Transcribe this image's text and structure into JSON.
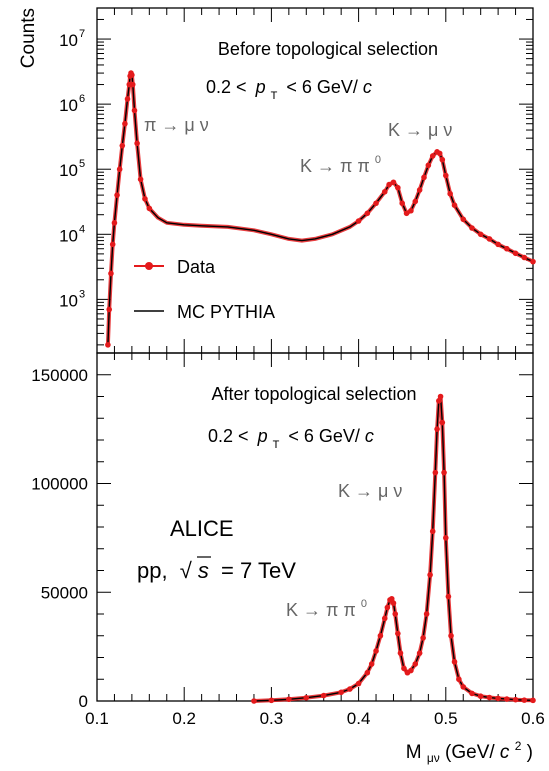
{
  "chart_data": [
    {
      "panel": "top",
      "type": "scatter",
      "scale": "log",
      "ylabel": "Counts",
      "ylim": [
        150,
        30000000
      ],
      "xlim": [
        0.1,
        0.6
      ],
      "yticks": [
        {
          "value": 1000,
          "base": "10",
          "exp": "3"
        },
        {
          "value": 10000,
          "base": "10",
          "exp": "4"
        },
        {
          "value": 100000,
          "base": "10",
          "exp": "5"
        },
        {
          "value": 1000000,
          "base": "10",
          "exp": "6"
        },
        {
          "value": 10000000,
          "base": "10",
          "exp": "7"
        }
      ],
      "texts": {
        "selection": "Before topological selection",
        "pt_lo": "0.2 <",
        "pt_var": "p",
        "pt_sub": "T",
        "pt_hi": "< 6 GeV/",
        "pt_c": "c",
        "pion_decay": "π → μ ν",
        "kaon_mu": "K → μ ν",
        "kaon_pi": "K → π π",
        "kaon_pi_sup": "0",
        "legend_data": "Data",
        "legend_mc": "MC PYTHIA"
      },
      "series": [
        {
          "name": "Data",
          "role": "points",
          "color": "#e41a1c"
        },
        {
          "name": "MC PYTHIA",
          "role": "line",
          "color": "#000000"
        }
      ],
      "x": [
        0.1125,
        0.114,
        0.116,
        0.118,
        0.12,
        0.123,
        0.126,
        0.129,
        0.132,
        0.135,
        0.137,
        0.138,
        0.139,
        0.14,
        0.141,
        0.143,
        0.146,
        0.15,
        0.155,
        0.16,
        0.17,
        0.18,
        0.2,
        0.22,
        0.25,
        0.28,
        0.3,
        0.32,
        0.335,
        0.35,
        0.37,
        0.39,
        0.4,
        0.41,
        0.42,
        0.43,
        0.435,
        0.44,
        0.445,
        0.45,
        0.455,
        0.46,
        0.465,
        0.47,
        0.475,
        0.48,
        0.485,
        0.49,
        0.493,
        0.496,
        0.5,
        0.505,
        0.51,
        0.52,
        0.53,
        0.54,
        0.55,
        0.56,
        0.57,
        0.58,
        0.59,
        0.6
      ],
      "y": [
        200,
        700,
        2500,
        7000,
        15000,
        40000,
        100000,
        230000,
        500000,
        1200000,
        2000000,
        2700000,
        3000000,
        2800000,
        2000000,
        800000,
        250000,
        70000,
        35000,
        25000,
        18000,
        15000,
        14000,
        13500,
        13000,
        11500,
        10000,
        8500,
        8000,
        8500,
        10000,
        13000,
        16000,
        21000,
        30000,
        45000,
        58000,
        63000,
        52000,
        30000,
        21000,
        23000,
        32000,
        48000,
        75000,
        115000,
        160000,
        185000,
        175000,
        140000,
        80000,
        42000,
        28000,
        17000,
        12500,
        10000,
        8500,
        7000,
        6000,
        5100,
        4400,
        3800
      ]
    },
    {
      "panel": "bottom",
      "type": "scatter",
      "scale": "linear",
      "xlabel_main": "M",
      "xlabel_sub": "μν",
      "xlabel_unit": " (GeV/",
      "xlabel_c": "c",
      "xlabel_sup": "2",
      "xlabel_close": ")",
      "ylim": [
        0,
        160000
      ],
      "xlim": [
        0.1,
        0.6
      ],
      "yticks": [
        0,
        50000,
        100000,
        150000
      ],
      "xticks": [
        "0.1",
        "0.2",
        "0.3",
        "0.4",
        "0.5",
        "0.6"
      ],
      "texts": {
        "selection": "After topological selection",
        "pt_lo": "0.2 <",
        "pt_var": "p",
        "pt_sub": "T",
        "pt_hi": "< 6 GeV/",
        "pt_c": "c",
        "kaon_mu": "K → μ ν",
        "kaon_pi": "K → π π",
        "kaon_pi_sup": "0",
        "experiment": "ALICE",
        "system": "pp,",
        "sqrt": "√",
        "energy_var": "s",
        "energy_val": "= 7 TeV"
      },
      "series": [
        {
          "name": "Data",
          "role": "points",
          "color": "#e41a1c"
        },
        {
          "name": "MC PYTHIA",
          "role": "line",
          "color": "#000000"
        }
      ],
      "x": [
        0.28,
        0.3,
        0.32,
        0.34,
        0.36,
        0.38,
        0.39,
        0.4,
        0.41,
        0.415,
        0.42,
        0.425,
        0.43,
        0.433,
        0.436,
        0.438,
        0.44,
        0.442,
        0.445,
        0.448,
        0.452,
        0.456,
        0.46,
        0.465,
        0.47,
        0.474,
        0.478,
        0.482,
        0.485,
        0.488,
        0.49,
        0.492,
        0.494,
        0.496,
        0.498,
        0.5,
        0.503,
        0.506,
        0.51,
        0.515,
        0.52,
        0.53,
        0.54,
        0.55,
        0.56,
        0.57,
        0.58,
        0.59,
        0.6
      ],
      "y": [
        0,
        300,
        800,
        1500,
        2500,
        4000,
        5500,
        8000,
        13000,
        17000,
        23000,
        30000,
        38000,
        43000,
        46500,
        47000,
        45000,
        40000,
        31000,
        22000,
        15000,
        13000,
        14000,
        17000,
        22000,
        29000,
        40000,
        58000,
        78000,
        105000,
        125000,
        138000,
        140000,
        128000,
        105000,
        75000,
        48000,
        30000,
        18000,
        10000,
        6500,
        3500,
        2200,
        1600,
        1200,
        900,
        600,
        400,
        300
      ]
    }
  ]
}
